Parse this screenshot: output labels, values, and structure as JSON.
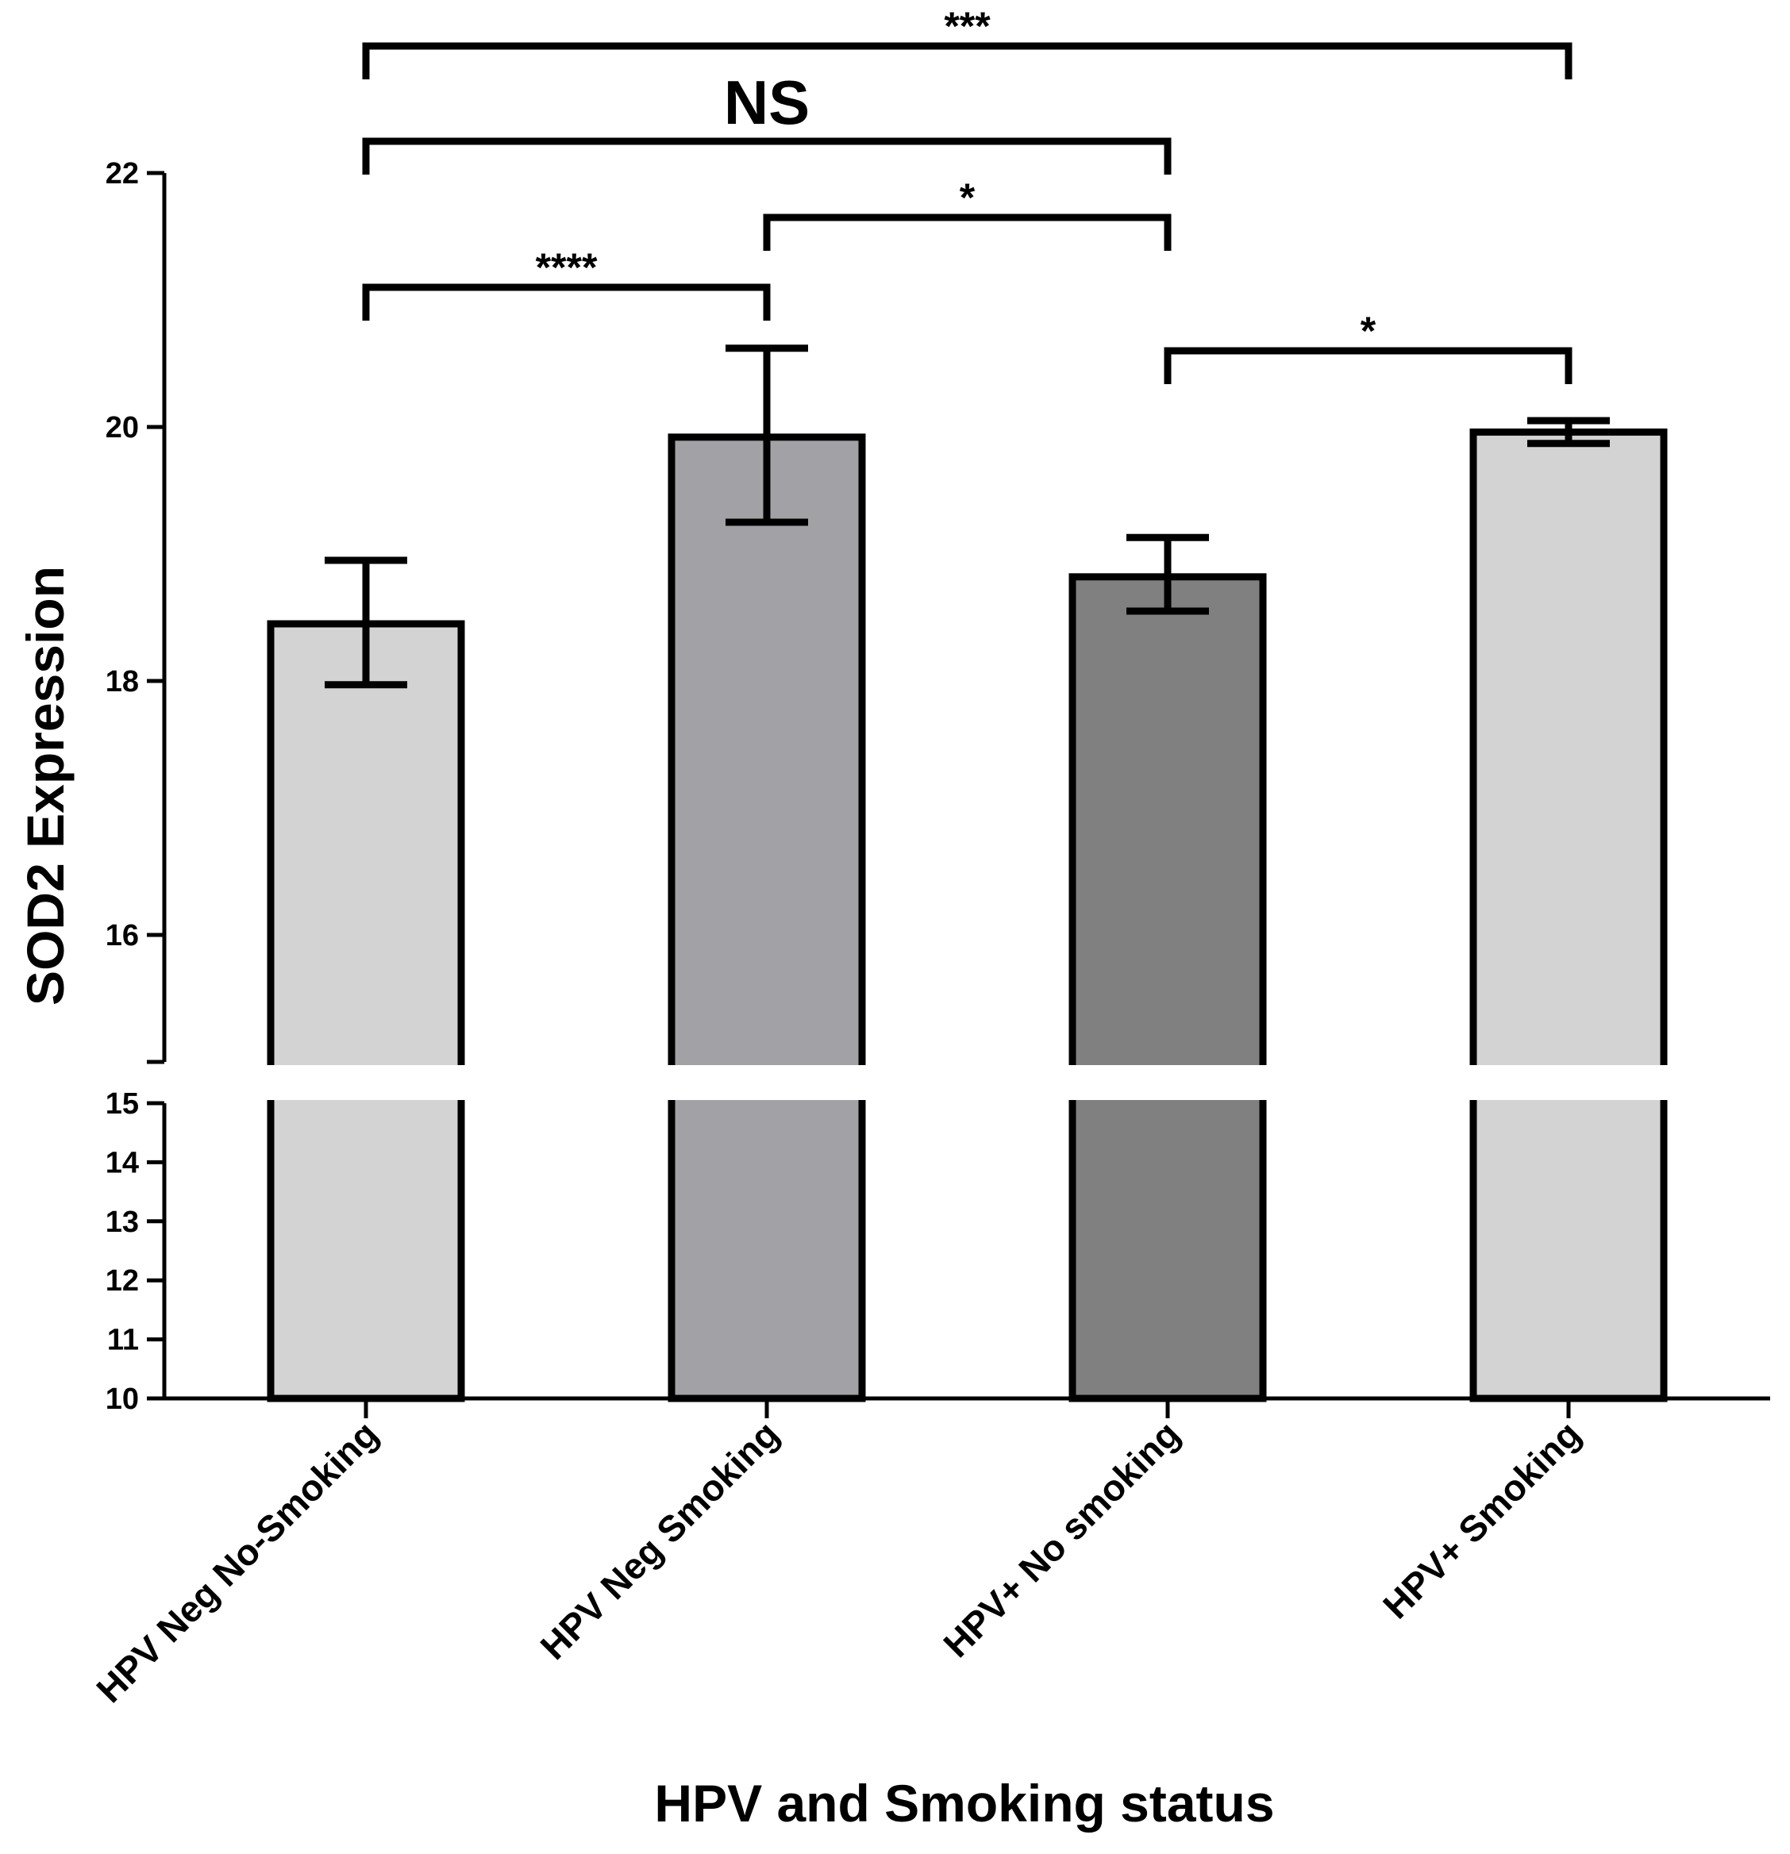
{
  "chart_data": {
    "type": "bar",
    "title": "",
    "xlabel": "HPV and Smoking status",
    "ylabel": "SOD2 Expression",
    "axis_break": {
      "lower_range": [
        10,
        15
      ],
      "upper_range": [
        15,
        22
      ]
    },
    "yticks_lower": [
      "10",
      "11",
      "12",
      "13",
      "14",
      "15"
    ],
    "yticks_upper": [
      "16",
      "18",
      "20",
      "22"
    ],
    "ytick_values_lower": [
      10,
      11,
      12,
      13,
      14,
      15
    ],
    "ytick_values_upper": [
      16,
      18,
      20,
      22
    ],
    "categories": [
      "HPV Neg No-Smoking",
      "HPV Neg Smoking",
      "HPV+ No smoking",
      "HPV+ Smoking"
    ],
    "values": [
      18.45,
      19.92,
      18.82,
      19.96
    ],
    "error_upper": [
      18.95,
      20.62,
      19.13,
      20.05
    ],
    "error_lower": [
      17.97,
      19.25,
      18.55,
      19.87
    ],
    "colors": [
      "#d3d3d3",
      "#a2a2a6",
      "#808080",
      "#d3d3d3"
    ],
    "significance": [
      {
        "from": 0,
        "to": 1,
        "label": "****",
        "y": 21.1
      },
      {
        "from": 1,
        "to": 2,
        "label": "*",
        "y": 21.65
      },
      {
        "from": 2,
        "to": 3,
        "label": "*",
        "y": 20.6
      },
      {
        "from": 0,
        "to": 2,
        "label": "NS",
        "y": 22.25
      },
      {
        "from": 0,
        "to": 3,
        "label": "***",
        "y": 23.0
      }
    ]
  }
}
